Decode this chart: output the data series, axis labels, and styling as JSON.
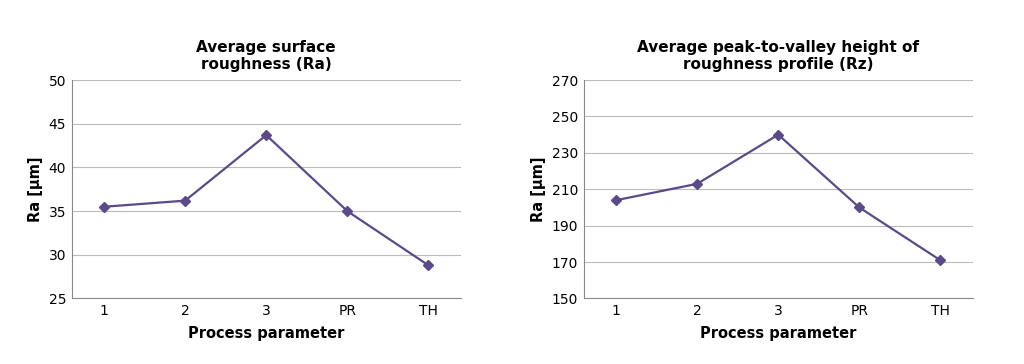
{
  "chart1": {
    "title": "Average surface\nroughness (Ra)",
    "x_labels": [
      "1",
      "2",
      "3",
      "PR",
      "TH"
    ],
    "y_values": [
      35.5,
      36.2,
      43.7,
      35.0,
      28.8
    ],
    "ylabel": "Ra [µm]",
    "xlabel": "Process parameter",
    "ylim": [
      25,
      50
    ],
    "yticks": [
      25,
      30,
      35,
      40,
      45,
      50
    ]
  },
  "chart2": {
    "title": "Average peak-to-valley height of\nroughness profile (Rz)",
    "x_labels": [
      "1",
      "2",
      "3",
      "PR",
      "TH"
    ],
    "y_values": [
      204,
      213,
      240,
      200,
      171
    ],
    "ylabel": "Ra [µm]",
    "xlabel": "Process parameter",
    "ylim": [
      150,
      270
    ],
    "yticks": [
      150,
      170,
      190,
      210,
      230,
      250,
      270
    ]
  },
  "line_color": "#5b4a8a",
  "marker": "D",
  "marker_size": 5,
  "line_width": 1.6,
  "background_color": "#ffffff",
  "grid_color": "#bbbbbb",
  "title_fontsize": 11,
  "label_fontsize": 10.5,
  "tick_fontsize": 10
}
